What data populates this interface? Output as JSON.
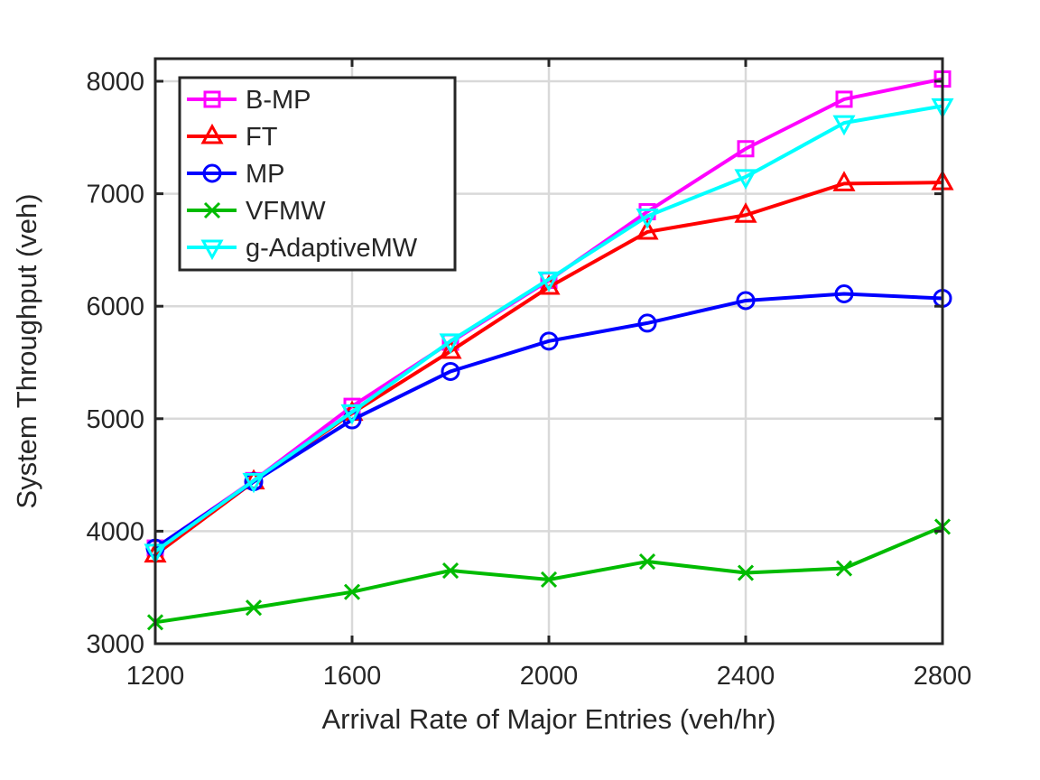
{
  "chart_data": {
    "type": "line",
    "title": "",
    "xlabel": "Arrival Rate of Major Entries (veh/hr)",
    "ylabel": "System Throughput (veh)",
    "xlim": [
      1200,
      2800
    ],
    "ylim": [
      3000,
      8200
    ],
    "xticks": [
      1200,
      1600,
      2000,
      2400,
      2800
    ],
    "yticks": [
      3000,
      4000,
      5000,
      6000,
      7000,
      8000
    ],
    "x_tick_labels": [
      "1200",
      "1600",
      "2000",
      "2400",
      "2800"
    ],
    "y_tick_labels": [
      "3000",
      "4000",
      "5000",
      "6000",
      "7000",
      "8000"
    ],
    "grid": true,
    "legend_position": "top-left",
    "x": [
      1200,
      1400,
      1600,
      1800,
      2000,
      2200,
      2400,
      2600,
      2800
    ],
    "series": [
      {
        "name": "B-MP",
        "color": "#ff00ff",
        "marker": "square",
        "values": [
          3850,
          4450,
          5110,
          5680,
          6230,
          6840,
          7400,
          7840,
          8020
        ]
      },
      {
        "name": "FT",
        "color": "#ff0000",
        "marker": "triangle-up",
        "values": [
          3790,
          4440,
          5050,
          5600,
          6170,
          6660,
          6810,
          7090,
          7100
        ]
      },
      {
        "name": "MP",
        "color": "#0000ff",
        "marker": "circle",
        "values": [
          3850,
          4440,
          4990,
          5420,
          5690,
          5850,
          6050,
          6110,
          6070
        ]
      },
      {
        "name": "VFMW",
        "color": "#00bb00",
        "marker": "x",
        "values": [
          3190,
          3320,
          3460,
          3650,
          3570,
          3730,
          3630,
          3670,
          4040
        ]
      },
      {
        "name": "g-AdaptiveMW",
        "color": "#00ffff",
        "marker": "triangle-down",
        "values": [
          3820,
          4450,
          5060,
          5690,
          6240,
          6800,
          7150,
          7630,
          7780
        ]
      }
    ]
  }
}
